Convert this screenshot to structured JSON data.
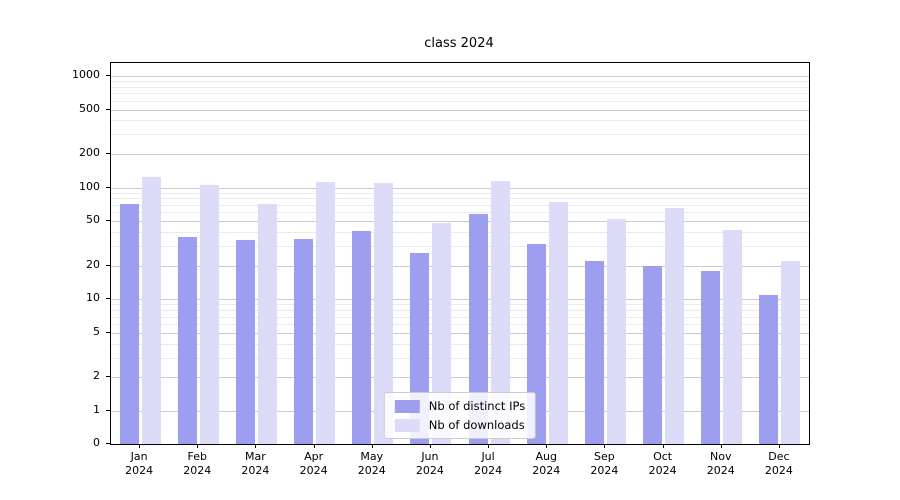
{
  "chart_data": {
    "type": "bar",
    "title": "class 2024",
    "x_categories": [
      "Jan 2024",
      "Feb 2024",
      "Mar 2024",
      "Apr 2024",
      "May 2024",
      "Jun 2024",
      "Jul 2024",
      "Aug 2024",
      "Sep 2024",
      "Oct 2024",
      "Nov 2024",
      "Dec 2024"
    ],
    "series": [
      {
        "name": "Nb of distinct IPs",
        "color": "#9e9ef0",
        "values": [
          72,
          36,
          34,
          35,
          41,
          26,
          58,
          31,
          22,
          20,
          18,
          11
        ]
      },
      {
        "name": "Nb of downloads",
        "color": "#dcdcf8",
        "values": [
          125,
          105,
          71,
          112,
          110,
          48,
          114,
          75,
          52,
          66,
          42,
          22
        ]
      }
    ],
    "yscale": "log",
    "yticks": [
      0,
      1,
      2,
      5,
      10,
      20,
      50,
      100,
      200,
      500,
      1000
    ],
    "ylim": [
      0,
      1000
    ],
    "grid": true,
    "legend_position": "lower center"
  }
}
